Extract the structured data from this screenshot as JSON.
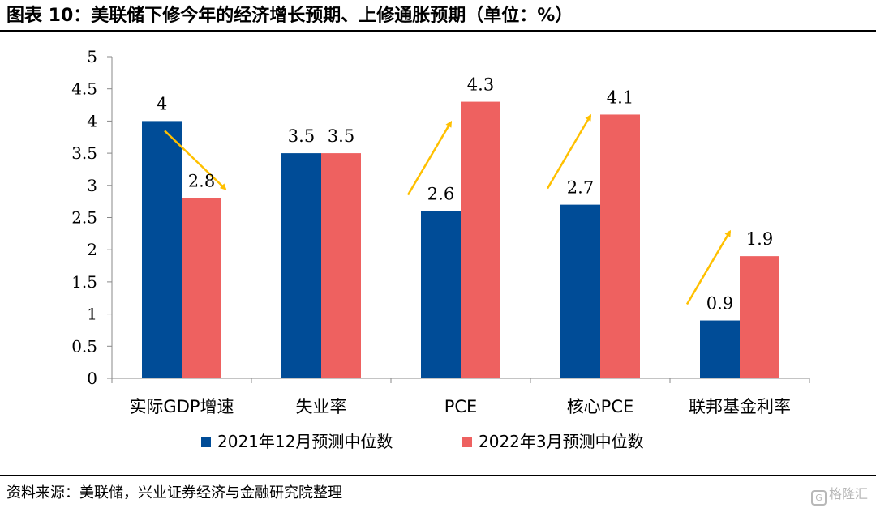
{
  "header": {
    "title": "图表 10：美联储下修今年的经济增长预期、上修通胀预期（单位：%）"
  },
  "footer": {
    "source": "资料来源：美联储，兴业证券经济与金融研究院整理",
    "watermark": "格隆汇"
  },
  "colors": {
    "series_2021": "#004C97",
    "series_2022": "#EE6160",
    "arrow": "#FFC000",
    "axis": "#888888"
  },
  "chart_data": {
    "type": "bar",
    "categories": [
      "实际GDP增速",
      "失业率",
      "PCE",
      "核心PCE",
      "联邦基金利率"
    ],
    "series": [
      {
        "name": "2021年12月预测中位数",
        "values": [
          4,
          3.5,
          2.6,
          2.7,
          0.9
        ]
      },
      {
        "name": "2022年3月预测中位数",
        "values": [
          2.8,
          3.5,
          4.3,
          4.1,
          1.9
        ]
      }
    ],
    "ylim": [
      0,
      5
    ],
    "yticks": [
      "0",
      "0.5",
      "1",
      "1.5",
      "2",
      "2.5",
      "3",
      "3.5",
      "4",
      "4.5",
      "5"
    ],
    "data_labels": [
      [
        "4",
        "3.5",
        "2.6",
        "2.7",
        "0.9"
      ],
      [
        "2.8",
        "3.5",
        "4.3",
        "4.1",
        "1.9"
      ]
    ],
    "legend_position": "bottom",
    "annotations": [
      {
        "category": "实际GDP增速",
        "direction": "down"
      },
      {
        "category": "PCE",
        "direction": "up"
      },
      {
        "category": "核心PCE",
        "direction": "up"
      },
      {
        "category": "联邦基金利率",
        "direction": "up"
      }
    ]
  }
}
